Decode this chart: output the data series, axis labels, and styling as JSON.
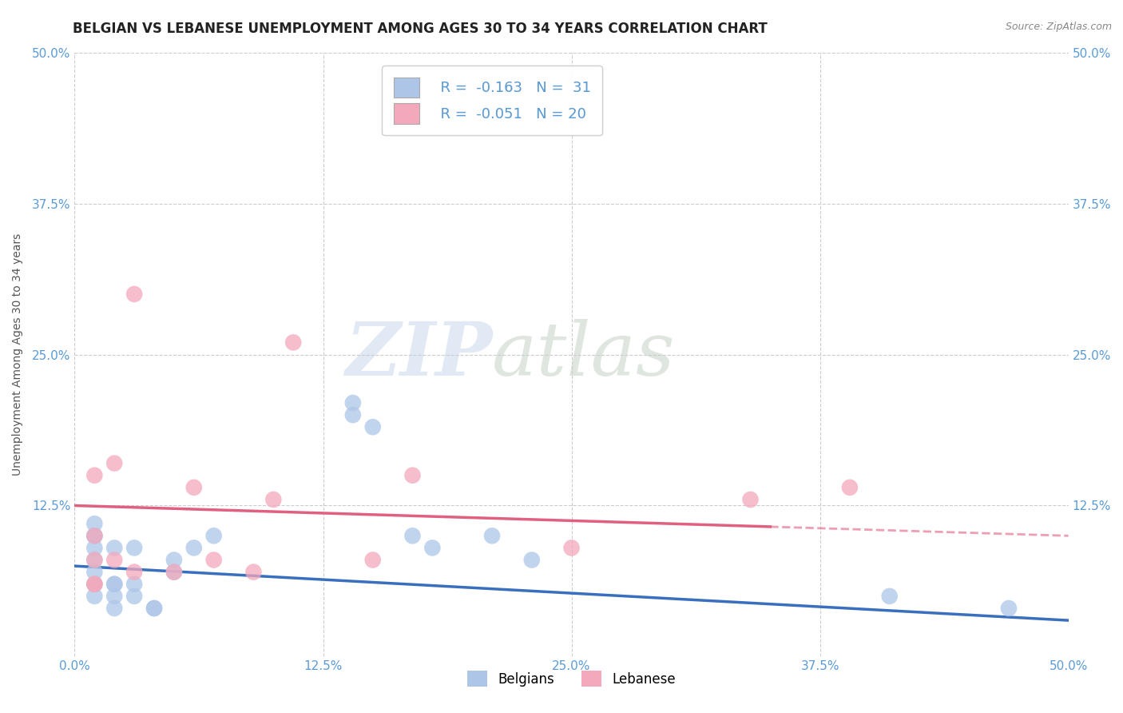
{
  "title": "BELGIAN VS LEBANESE UNEMPLOYMENT AMONG AGES 30 TO 34 YEARS CORRELATION CHART",
  "source": "Source: ZipAtlas.com",
  "xlabel_label": "Belgians",
  "ylabel_label": "Unemployment Among Ages 30 to 34 years",
  "xlabel2_label": "Lebanese",
  "xlim": [
    0.0,
    0.5
  ],
  "ylim": [
    0.0,
    0.5
  ],
  "xticks": [
    0.0,
    0.125,
    0.25,
    0.375,
    0.5
  ],
  "yticks": [
    0.0,
    0.125,
    0.25,
    0.375,
    0.5
  ],
  "xticklabels": [
    "0.0%",
    "12.5%",
    "25.0%",
    "37.5%",
    "50.0%"
  ],
  "yticklabels": [
    "",
    "12.5%",
    "25.0%",
    "37.5%",
    "50.0%"
  ],
  "right_yticklabels": [
    "",
    "12.5%",
    "25.0%",
    "37.5%",
    "50.0%"
  ],
  "right_yticks": [
    0.0,
    0.125,
    0.25,
    0.375,
    0.5
  ],
  "belgian_color": "#adc6e8",
  "lebanese_color": "#f4a8bb",
  "belgian_line_color": "#3a6fbe",
  "lebanese_line_color": "#e06080",
  "watermark_zip": "ZIP",
  "watermark_atlas": "atlas",
  "legend_R_belgian": "R = -0.163",
  "legend_N_belgian": "N =  31",
  "legend_R_lebanese": "R = -0.051",
  "legend_N_lebanese": "N = 20",
  "belgian_x": [
    0.01,
    0.01,
    0.01,
    0.01,
    0.01,
    0.01,
    0.01,
    0.01,
    0.02,
    0.02,
    0.02,
    0.02,
    0.02,
    0.03,
    0.03,
    0.03,
    0.04,
    0.04,
    0.05,
    0.05,
    0.06,
    0.07,
    0.14,
    0.14,
    0.15,
    0.17,
    0.18,
    0.21,
    0.23,
    0.41,
    0.47
  ],
  "belgian_y": [
    0.09,
    0.1,
    0.1,
    0.11,
    0.05,
    0.06,
    0.07,
    0.08,
    0.09,
    0.05,
    0.06,
    0.04,
    0.06,
    0.09,
    0.06,
    0.05,
    0.04,
    0.04,
    0.07,
    0.08,
    0.09,
    0.1,
    0.2,
    0.21,
    0.19,
    0.1,
    0.09,
    0.1,
    0.08,
    0.05,
    0.04
  ],
  "lebanese_x": [
    0.01,
    0.01,
    0.01,
    0.01,
    0.01,
    0.02,
    0.02,
    0.03,
    0.03,
    0.05,
    0.06,
    0.07,
    0.09,
    0.1,
    0.11,
    0.15,
    0.17,
    0.25,
    0.34,
    0.39
  ],
  "lebanese_y": [
    0.06,
    0.08,
    0.1,
    0.06,
    0.15,
    0.08,
    0.16,
    0.07,
    0.3,
    0.07,
    0.14,
    0.08,
    0.07,
    0.13,
    0.26,
    0.08,
    0.15,
    0.09,
    0.13,
    0.14
  ],
  "background_color": "#ffffff",
  "grid_color": "#cccccc",
  "belgian_regression": [
    -0.163,
    0.075
  ],
  "lebanese_regression": [
    -0.051,
    0.115
  ]
}
